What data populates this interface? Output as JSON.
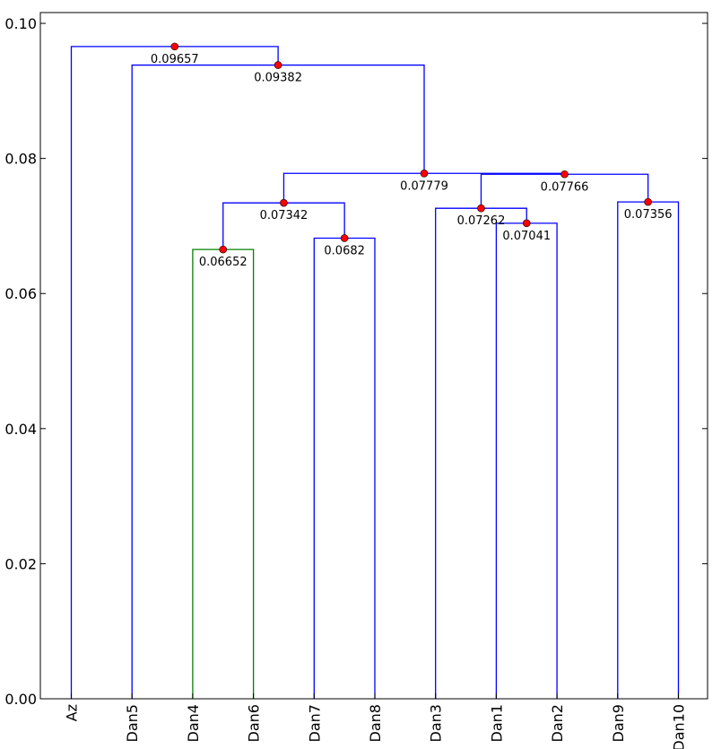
{
  "chart_data": {
    "type": "dendrogram",
    "leaves": [
      "Az",
      "Dan5",
      "Dan4",
      "Dan6",
      "Dan7",
      "Dan8",
      "Dan3",
      "Dan1",
      "Dan2",
      "Dan9",
      "Dan10"
    ],
    "yticks": [
      "0.00",
      "0.02",
      "0.04",
      "0.06",
      "0.08",
      "0.10"
    ],
    "ylim": [
      0,
      0.1016
    ],
    "grid": false,
    "colors": {
      "default_link": "#0000ff",
      "highlight_link": "#008000",
      "merge_marker": "#ff0000",
      "axis": "#000000"
    },
    "merges": [
      {
        "id": "m1",
        "children": [
          "Dan4",
          "Dan6"
        ],
        "height": 0.06652,
        "label": "0.06652",
        "color": "#008000"
      },
      {
        "id": "m2",
        "children": [
          "Dan7",
          "Dan8"
        ],
        "height": 0.0682,
        "label": "0.0682",
        "color": "#0000ff"
      },
      {
        "id": "m3",
        "children": [
          "Dan1",
          "Dan2"
        ],
        "height": 0.07041,
        "label": "0.07041",
        "color": "#0000ff"
      },
      {
        "id": "m4",
        "children": [
          "Dan3",
          "m3"
        ],
        "height": 0.07262,
        "label": "0.07262",
        "color": "#0000ff"
      },
      {
        "id": "m5",
        "children": [
          "m1",
          "m2"
        ],
        "height": 0.07342,
        "label": "0.07342",
        "color": "#0000ff"
      },
      {
        "id": "m6",
        "children": [
          "Dan9",
          "Dan10"
        ],
        "height": 0.07356,
        "label": "0.07356",
        "color": "#0000ff"
      },
      {
        "id": "m7",
        "children": [
          "m4",
          "m6"
        ],
        "height": 0.07766,
        "label": "0.07766",
        "color": "#0000ff"
      },
      {
        "id": "m8",
        "children": [
          "m5",
          "m7"
        ],
        "height": 0.07779,
        "label": "0.07779",
        "color": "#0000ff"
      },
      {
        "id": "m9",
        "children": [
          "Dan5",
          "m8"
        ],
        "height": 0.09382,
        "label": "0.09382",
        "color": "#0000ff"
      },
      {
        "id": "m10",
        "children": [
          "Az",
          "m9"
        ],
        "height": 0.09657,
        "label": "0.09657",
        "color": "#0000ff"
      }
    ]
  }
}
